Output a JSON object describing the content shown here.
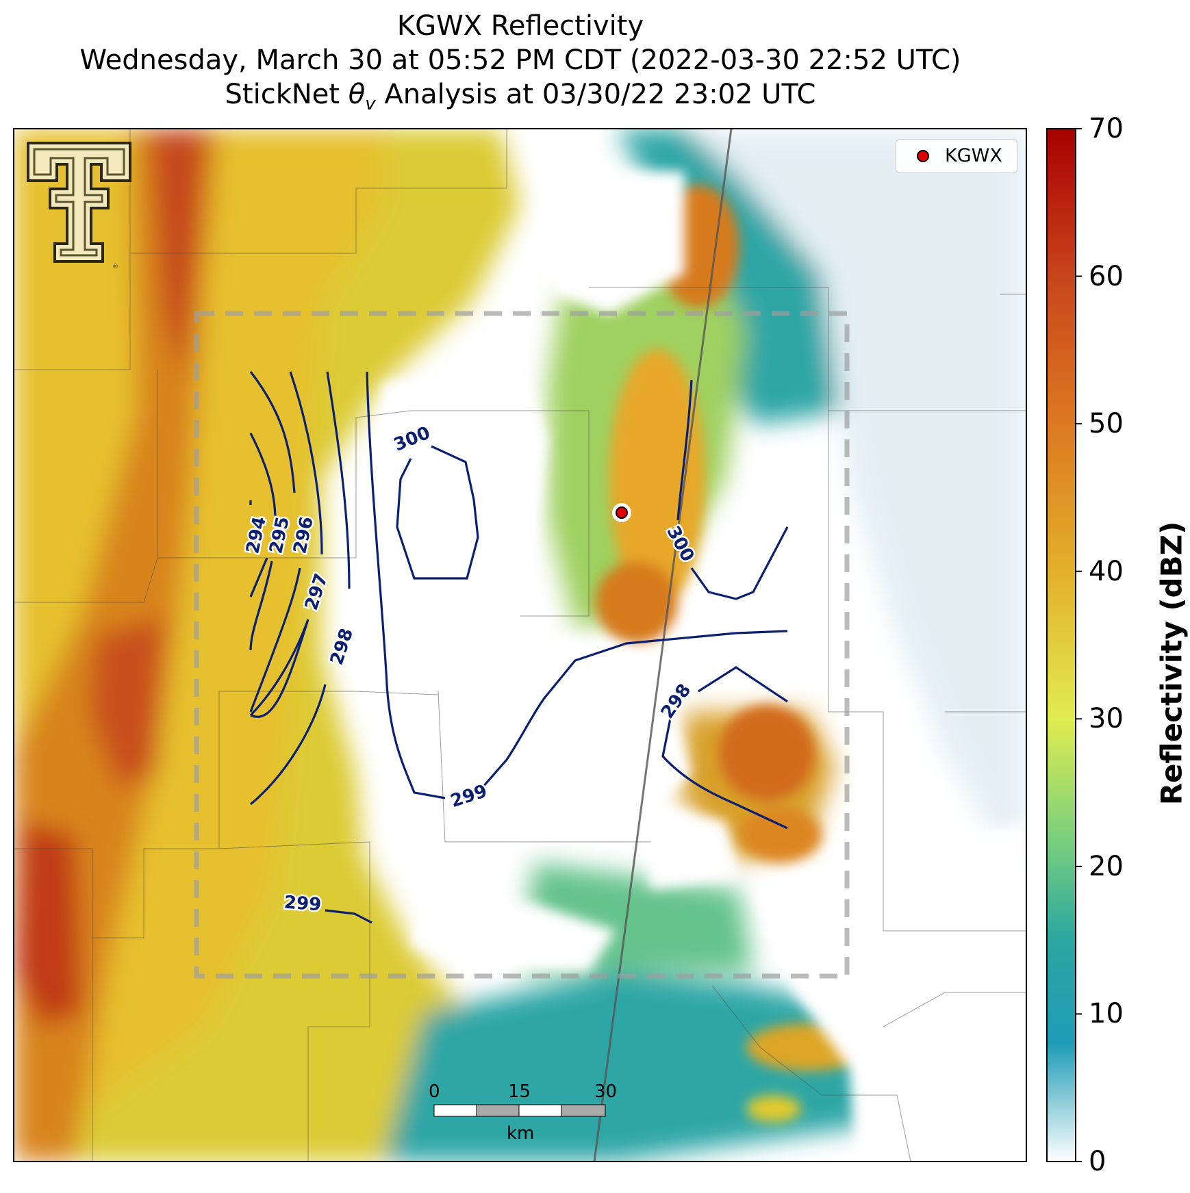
{
  "title": {
    "line1": "KGWX Reflectivity",
    "line2": "Wednesday, March 30 at 05:52 PM CDT (2022-03-30 22:52 UTC)",
    "line3_prefix": "StickNet ",
    "line3_symbol": "θ",
    "line3_sub": "v",
    "line3_suffix": " Analysis at 03/30/22 23:02 UTC"
  },
  "legend": {
    "label": "KGWX",
    "marker_color": "#e00000"
  },
  "colorbar": {
    "label": "Reflectivity (dBZ)",
    "min": 0,
    "max": 70,
    "ticks": [
      "0",
      "10",
      "20",
      "30",
      "40",
      "50",
      "60",
      "70"
    ],
    "stops": [
      {
        "value": 0,
        "color": "#ffffff"
      },
      {
        "value": 8,
        "color": "#1f9bb7"
      },
      {
        "value": 15,
        "color": "#2aa7a0"
      },
      {
        "value": 22,
        "color": "#7cd07d"
      },
      {
        "value": 30,
        "color": "#e1ec4f"
      },
      {
        "value": 40,
        "color": "#e3b02a"
      },
      {
        "value": 50,
        "color": "#dc7920"
      },
      {
        "value": 60,
        "color": "#c8451c"
      },
      {
        "value": 70,
        "color": "#a70000"
      }
    ]
  },
  "contours": {
    "color": "#0b2070",
    "labels": [
      "294",
      "295",
      "296",
      "297",
      "298",
      "299",
      "300",
      "300",
      "298",
      "299",
      "299"
    ]
  },
  "scalebar": {
    "ticks": [
      "0",
      "15",
      "30"
    ],
    "unit": "km"
  },
  "logo": {
    "name": "Texas Tech Double T",
    "mark": "®"
  }
}
